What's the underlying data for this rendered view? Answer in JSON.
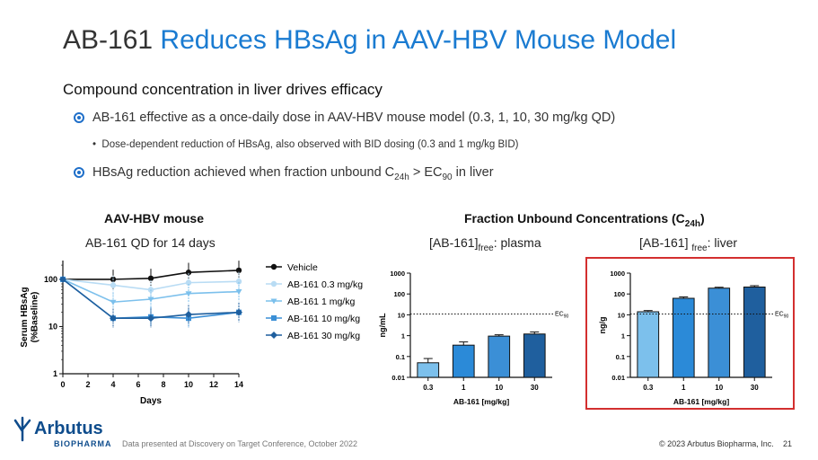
{
  "title": {
    "prefix": "AB-161",
    "accent": "Reduces HBsAg in AAV-HBV Mouse Model"
  },
  "subtitle": "Compound concentration in liver drives efficacy",
  "bullets": [
    "AB-161 effective as a once-daily dose in AAV-HBV mouse model (0.3, 1, 10, 30 mg/kg QD)",
    "HBsAg reduction achieved when fraction unbound C",
    "24h",
    " > EC",
    "90",
    " in liver"
  ],
  "sub_bullet": "Dose-dependent reduction of HBsAg, also observed with BID dosing (0.3 and 1 mg/kg BID)",
  "left_panel": {
    "heading": "AAV-HBV mouse",
    "subheading": "AB-161 QD for 14 days"
  },
  "right_panel": {
    "heading": "Fraction Unbound Concentrations (C",
    "heading_sub": "24h",
    "heading_end": ")",
    "plasma_label": "[AB-161]",
    "plasma_sub": "free",
    "plasma_end": ": plasma",
    "liver_label": "[AB-161] ",
    "liver_sub": "free",
    "liver_end": ": liver"
  },
  "footer": {
    "note": "Data presented at Discovery on Target Conference, October 2022",
    "copyright": "© 2023 Arbutus Biopharma, Inc.",
    "page": "21"
  },
  "logo": {
    "name": "Arbutus",
    "sub": "BIOPHARMA"
  },
  "colors": {
    "accent": "#1a7bd1",
    "vehicle": "#111111",
    "d03": "#b9dcf4",
    "d1": "#7cc0ec",
    "d10": "#3b8fd6",
    "d30": "#1f5f9e",
    "highlight": "#d32f2f"
  },
  "chart_data": [
    {
      "type": "line",
      "xlabel": "Days",
      "ylabel": "Serum HBsAg (%Baseline)",
      "x": [
        0,
        4,
        7,
        10,
        14
      ],
      "xticks": [
        "0",
        "2",
        "4",
        "6",
        "8",
        "10",
        "12",
        "14"
      ],
      "yticks": [
        "1",
        "10",
        "100"
      ],
      "yscale": "log",
      "ylim": [
        1,
        250
      ],
      "xlim": [
        0,
        14
      ],
      "legend_position": "right",
      "series": [
        {
          "name": "Vehicle",
          "values": [
            100,
            100,
            105,
            140,
            155
          ],
          "color": "#111111",
          "marker": "circle"
        },
        {
          "name": "AB-161 0.3 mg/kg",
          "values": [
            100,
            75,
            60,
            85,
            90
          ],
          "color": "#b9dcf4",
          "marker": "circle"
        },
        {
          "name": "AB-161 1 mg/kg",
          "values": [
            100,
            33,
            38,
            50,
            55
          ],
          "color": "#7cc0ec",
          "marker": "triangle"
        },
        {
          "name": "AB-161 10 mg/kg",
          "values": [
            100,
            15,
            16,
            15,
            20
          ],
          "color": "#3b8fd6",
          "marker": "square"
        },
        {
          "name": "AB-161 30 mg/kg",
          "values": [
            100,
            15,
            15,
            18,
            20
          ],
          "color": "#1f5f9e",
          "marker": "diamond"
        }
      ]
    },
    {
      "type": "bar",
      "xlabel": "AB-161 [mg/kg]",
      "ylabel": "ng/mL",
      "categories": [
        "0.3",
        "1",
        "10",
        "30"
      ],
      "values": [
        0.05,
        0.35,
        0.95,
        1.2
      ],
      "errors": [
        0.08,
        0.5,
        1.1,
        1.5
      ],
      "yscale": "log",
      "ylim": [
        0.01,
        1000
      ],
      "yticks": [
        "0.01",
        "0.1",
        "1",
        "10",
        "100",
        "1000"
      ],
      "reference_line": {
        "label": "EC",
        "label_sub": "90",
        "value": 11
      }
    },
    {
      "type": "bar",
      "xlabel": "AB-161 [mg/kg]",
      "ylabel": "ng/g",
      "categories": [
        "0.3",
        "1",
        "10",
        "30"
      ],
      "values": [
        14,
        62,
        190,
        215
      ],
      "errors": [
        16,
        72,
        210,
        250
      ],
      "yscale": "log",
      "ylim": [
        0.01,
        1000
      ],
      "yticks": [
        "0.01",
        "0.1",
        "1",
        "10",
        "100",
        "1000"
      ],
      "reference_line": {
        "label": "EC",
        "label_sub": "90",
        "value": 11
      }
    }
  ]
}
